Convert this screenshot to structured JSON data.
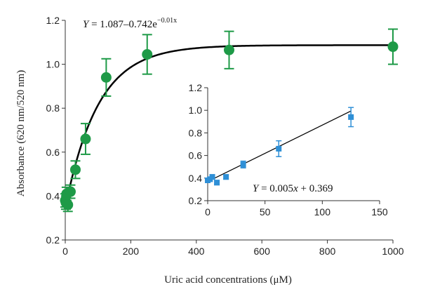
{
  "chart_data": [
    {
      "type": "scatter",
      "ylabel": "Absorbance (620 nm/520 nm)",
      "xlabel": "Uric acid concentrations (μM)",
      "xlim": [
        0,
        1000
      ],
      "ylim": [
        0.2,
        1.2
      ],
      "xticks": [
        0,
        200,
        400,
        600,
        800,
        1000
      ],
      "yticks": [
        0.2,
        0.4,
        0.6,
        0.8,
        1.0,
        1.2
      ],
      "ytick_labels": [
        "0.2",
        "0.4",
        "0.6",
        "0.8",
        "1.0",
        "1.2"
      ],
      "equation_parts": {
        "prefix": "Y",
        "main": " = 1.087–0.742e",
        "exponent": "−0.01x"
      },
      "fit": {
        "a": 1.087,
        "b": 0.742,
        "k": 0.01
      },
      "marker_color": "#1e9a47",
      "fit_color": "#000000",
      "series": [
        {
          "x": [
            0,
            2,
            4,
            8,
            16,
            31,
            62,
            125,
            250,
            500,
            1000
          ],
          "y": [
            0.38,
            0.37,
            0.41,
            0.36,
            0.42,
            0.52,
            0.66,
            0.94,
            1.045,
            1.065,
            1.08
          ],
          "err": [
            0.03,
            0.03,
            0.03,
            0.03,
            0.03,
            0.04,
            0.07,
            0.085,
            0.09,
            0.085,
            0.08
          ]
        }
      ],
      "grid": false
    },
    {
      "type": "scatter",
      "xlim": [
        0,
        150
      ],
      "ylim": [
        0.2,
        1.2
      ],
      "xticks": [
        0,
        50,
        100,
        150
      ],
      "yticks": [
        0.2,
        0.4,
        0.6,
        0.8,
        1.0,
        1.2
      ],
      "ytick_labels": [
        "0.2",
        "0.4",
        "0.6",
        "0.8",
        "1.0",
        "1.2"
      ],
      "equation_parts": {
        "prefix": "Y",
        "main": " = 0.005",
        "var": "x",
        "suffix": " + 0.369"
      },
      "fit": {
        "slope": 0.005,
        "intercept": 0.369
      },
      "marker_color": "#2e8fd6",
      "fit_color": "#000000",
      "series": [
        {
          "x": [
            0,
            2,
            4,
            8,
            16,
            31,
            62,
            125
          ],
          "y": [
            0.38,
            0.39,
            0.41,
            0.36,
            0.41,
            0.52,
            0.66,
            0.94
          ],
          "err": [
            0.02,
            0.02,
            0.02,
            0.02,
            0.02,
            0.03,
            0.07,
            0.085
          ]
        }
      ],
      "grid": false
    }
  ]
}
